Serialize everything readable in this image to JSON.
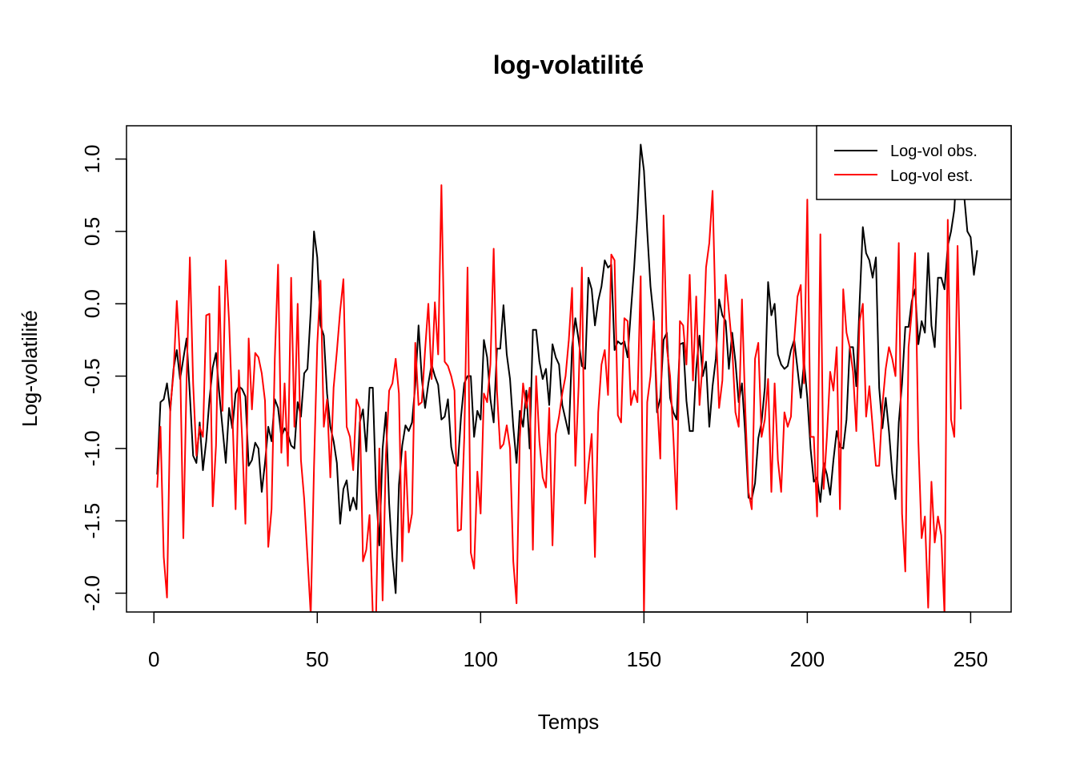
{
  "chart_data": {
    "type": "line",
    "title": "log-volatilité",
    "xlabel": "Temps",
    "ylabel": "Log-volatilité",
    "xlim": [
      -8.4,
      262.4
    ],
    "ylim": [
      -2.13,
      1.23
    ],
    "x_ticks": [
      0,
      50,
      100,
      150,
      200,
      250
    ],
    "y_ticks": [
      -2.0,
      -1.5,
      -1.0,
      -0.5,
      0.0,
      0.5,
      1.0
    ],
    "y_tick_labels": [
      "-2.0",
      "-1.5",
      "-1.0",
      "-0.5",
      "0.0",
      "0.5",
      "1.0"
    ],
    "grid": false,
    "legend_position": "top-right",
    "series": [
      {
        "name": "Log-vol obs.",
        "color": "#000000",
        "x_start": 1,
        "values": [
          -1.18,
          -0.68,
          -0.66,
          -0.55,
          -0.74,
          -0.45,
          -0.32,
          -0.52,
          -0.38,
          -0.24,
          -0.63,
          -1.05,
          -1.1,
          -0.82,
          -1.15,
          -0.95,
          -0.66,
          -0.44,
          -0.34,
          -0.62,
          -0.86,
          -1.1,
          -0.72,
          -0.86,
          -0.62,
          -0.57,
          -0.59,
          -0.64,
          -1.12,
          -1.08,
          -0.96,
          -1.0,
          -1.3,
          -1.1,
          -0.85,
          -0.95,
          -0.66,
          -0.72,
          -0.92,
          -0.86,
          -0.9,
          -0.98,
          -1.0,
          -0.68,
          -0.78,
          -0.48,
          -0.45,
          -0.05,
          0.5,
          0.32,
          -0.15,
          -0.22,
          -0.62,
          -0.85,
          -0.95,
          -1.1,
          -1.52,
          -1.28,
          -1.22,
          -1.43,
          -1.34,
          -1.42,
          -0.82,
          -0.73,
          -1.02,
          -0.58,
          -0.58,
          -1.3,
          -1.67,
          -1.0,
          -0.75,
          -1.38,
          -1.75,
          -2.0,
          -1.25,
          -0.98,
          -0.84,
          -0.88,
          -0.82,
          -0.56,
          -0.15,
          -0.52,
          -0.72,
          -0.55,
          -0.42,
          -0.5,
          -0.56,
          -0.8,
          -0.78,
          -0.66,
          -0.99,
          -1.1,
          -1.12,
          -0.78,
          -0.55,
          -0.5,
          -0.5,
          -0.92,
          -0.74,
          -0.8,
          -0.25,
          -0.37,
          -0.66,
          -0.82,
          -0.31,
          -0.31,
          -0.01,
          -0.35,
          -0.52,
          -0.85,
          -1.1,
          -0.74,
          -0.85,
          -0.6,
          -1.0,
          -0.18,
          -0.18,
          -0.4,
          -0.52,
          -0.45,
          -0.7,
          -0.28,
          -0.37,
          -0.42,
          -0.7,
          -0.8,
          -0.9,
          -0.3,
          -0.1,
          -0.25,
          -0.43,
          -0.45,
          0.18,
          0.1,
          -0.15,
          0.02,
          0.12,
          0.3,
          0.25,
          0.27,
          -0.32,
          -0.26,
          -0.28,
          -0.26,
          -0.37,
          -0.05,
          0.25,
          0.62,
          1.1,
          0.92,
          0.5,
          0.12,
          -0.1,
          -0.75,
          -0.65,
          -0.25,
          -0.2,
          -0.65,
          -0.75,
          -0.8,
          -0.28,
          -0.27,
          -0.67,
          -0.88,
          -0.88,
          -0.45,
          -0.22,
          -0.5,
          -0.4,
          -0.85,
          -0.57,
          -0.38,
          0.03,
          -0.08,
          -0.12,
          -0.45,
          -0.2,
          -0.4,
          -0.68,
          -0.55,
          -0.9,
          -1.34,
          -1.35,
          -1.24,
          -0.93,
          -0.82,
          -0.58,
          0.15,
          -0.08,
          0.0,
          -0.35,
          -0.42,
          -0.45,
          -0.43,
          -0.32,
          -0.25,
          -0.45,
          -0.65,
          -0.4,
          -0.65,
          -1.0,
          -1.23,
          -1.2,
          -1.37,
          -1.1,
          -1.18,
          -1.32,
          -1.08,
          -0.88,
          -0.99,
          -1.0,
          -0.8,
          -0.3,
          -0.3,
          -0.57,
          0.0,
          0.53,
          0.35,
          0.3,
          0.18,
          0.32,
          -0.58,
          -0.86,
          -0.65,
          -0.88,
          -1.17,
          -1.35,
          -0.82,
          -0.55,
          -0.16,
          -0.16,
          0.02,
          0.1,
          -0.28,
          -0.12,
          -0.2,
          0.35,
          -0.15,
          -0.3,
          0.18,
          0.18,
          0.1,
          0.4,
          0.5,
          0.65,
          1.05,
          0.92,
          0.75,
          0.5,
          0.46,
          0.2,
          0.37
        ]
      },
      {
        "name": "Log-vol est.",
        "color": "#ff0000",
        "x_start": 1,
        "values": [
          -1.27,
          -0.85,
          -1.75,
          -2.03,
          -0.72,
          -0.48,
          0.02,
          -0.38,
          -1.62,
          -0.52,
          0.32,
          -0.55,
          -1.05,
          -0.85,
          -0.92,
          -0.08,
          -0.07,
          -1.4,
          -0.98,
          0.12,
          -0.74,
          0.3,
          -0.12,
          -0.75,
          -1.42,
          -0.46,
          -0.93,
          -1.52,
          -0.24,
          -0.73,
          -0.34,
          -0.37,
          -0.48,
          -0.67,
          -1.68,
          -1.42,
          -0.38,
          0.27,
          -1.03,
          -0.55,
          -1.12,
          0.18,
          -0.85,
          0.0,
          -1.08,
          -1.35,
          -1.75,
          -2.15,
          -1.13,
          -0.28,
          0.16,
          -0.85,
          -0.66,
          -1.2,
          -0.58,
          -0.33,
          -0.05,
          0.17,
          -0.85,
          -0.92,
          -1.15,
          -0.66,
          -0.72,
          -1.78,
          -1.7,
          -1.46,
          -2.15,
          -2.15,
          -1.0,
          -2.05,
          -1.05,
          -0.6,
          -0.55,
          -0.38,
          -0.62,
          -1.78,
          -1.02,
          -1.58,
          -1.45,
          -0.27,
          -0.7,
          -0.68,
          -0.32,
          0.0,
          -0.52,
          0.01,
          -0.35,
          0.82,
          -0.4,
          -0.43,
          -0.5,
          -0.6,
          -1.57,
          -1.56,
          -0.92,
          0.25,
          -1.72,
          -1.83,
          -1.16,
          -1.45,
          -0.62,
          -0.68,
          -0.42,
          0.38,
          -0.6,
          -1.0,
          -0.97,
          -0.84,
          -1.0,
          -1.78,
          -2.07,
          -0.93,
          -0.55,
          -0.72,
          -0.58,
          -1.7,
          -0.5,
          -0.95,
          -1.2,
          -1.27,
          -0.72,
          -1.67,
          -0.9,
          -0.78,
          -0.62,
          -0.5,
          -0.25,
          0.11,
          -1.12,
          -0.57,
          0.25,
          -1.38,
          -1.12,
          -0.9,
          -1.75,
          -0.75,
          -0.42,
          -0.32,
          -0.63,
          0.34,
          0.3,
          -0.77,
          -0.82,
          -0.1,
          -0.12,
          -0.7,
          -0.6,
          -0.68,
          0.19,
          -2.15,
          -0.68,
          -0.5,
          -0.12,
          -0.65,
          -1.07,
          0.61,
          -0.3,
          -0.5,
          -0.92,
          -1.42,
          -0.12,
          -0.15,
          -0.42,
          0.2,
          -0.53,
          0.05,
          -0.7,
          -0.4,
          0.25,
          0.42,
          0.78,
          -0.15,
          -0.72,
          -0.53,
          0.2,
          -0.05,
          -0.3,
          -0.75,
          -0.85,
          0.03,
          -0.72,
          -1.3,
          -1.42,
          -0.38,
          -0.27,
          -0.92,
          -0.8,
          -0.52,
          -1.3,
          -0.55,
          -1.08,
          -1.3,
          -0.75,
          -0.85,
          -0.78,
          -0.25,
          0.05,
          0.13,
          -0.55,
          0.72,
          -0.92,
          -0.92,
          -1.47,
          0.48,
          -1.28,
          -0.92,
          -0.47,
          -0.6,
          -0.3,
          -1.42,
          0.1,
          -0.2,
          -0.3,
          -0.47,
          -0.88,
          -0.12,
          0.0,
          -0.78,
          -0.57,
          -0.85,
          -1.12,
          -1.12,
          -0.7,
          -0.45,
          -0.3,
          -0.38,
          -0.5,
          0.42,
          -1.45,
          -1.85,
          -0.3,
          -0.05,
          0.35,
          -0.95,
          -1.62,
          -1.47,
          -2.1,
          -1.23,
          -1.65,
          -1.47,
          -1.6,
          -2.15,
          0.58,
          -0.8,
          -0.92,
          0.4,
          -0.73
        ]
      }
    ]
  }
}
